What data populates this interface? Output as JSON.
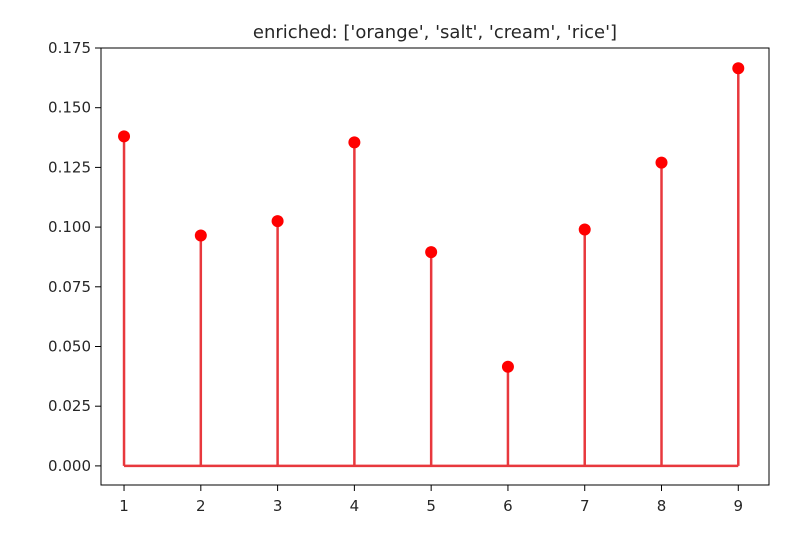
{
  "chart_data": {
    "type": "stem",
    "title": "enriched: ['orange', 'salt', 'cream', 'rice']",
    "xlabel": "",
    "ylabel": "",
    "x": [
      1,
      2,
      3,
      4,
      5,
      6,
      7,
      8,
      9
    ],
    "values": [
      0.138,
      0.0965,
      0.1025,
      0.1355,
      0.0895,
      0.0415,
      0.099,
      0.127,
      0.1665
    ],
    "xlim": [
      0.7,
      9.4
    ],
    "ylim": [
      -0.008,
      0.175
    ],
    "xticks": [
      "1",
      "2",
      "3",
      "4",
      "5",
      "6",
      "7",
      "8",
      "9"
    ],
    "yticks": [
      "0.000",
      "0.025",
      "0.050",
      "0.075",
      "0.100",
      "0.125",
      "0.150",
      "0.175"
    ],
    "grid": false,
    "color": "#ff0000",
    "line_color": "#e8383d"
  }
}
